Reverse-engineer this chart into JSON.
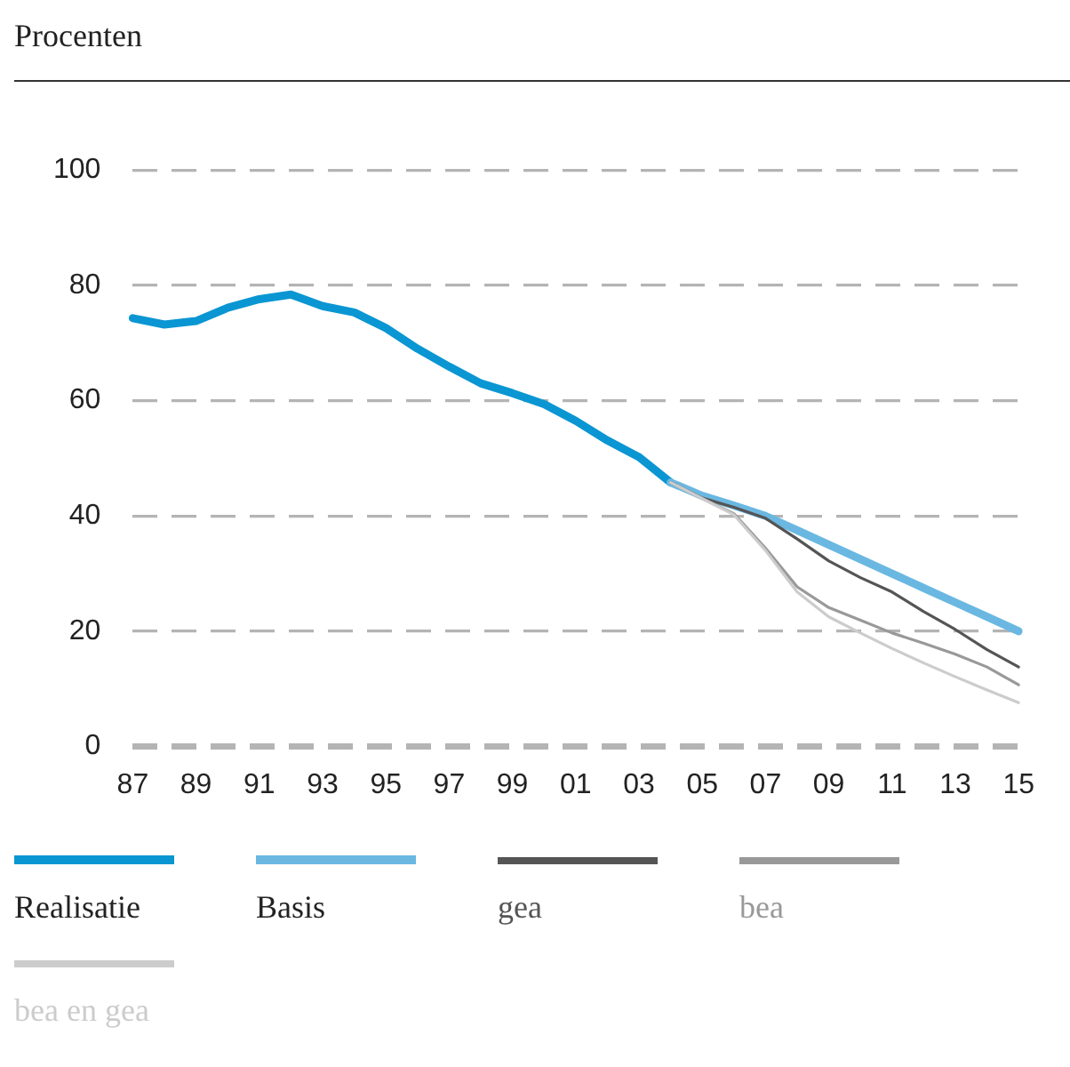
{
  "chart_data": {
    "type": "line",
    "ylabel": "Procenten",
    "categories": [
      "87",
      null,
      "89",
      null,
      "91",
      null,
      "93",
      null,
      "95",
      null,
      "97",
      null,
      "99",
      null,
      "01",
      null,
      "03",
      null,
      "05",
      null,
      "07",
      null,
      "09",
      null,
      "11",
      null,
      "13",
      null,
      "15"
    ],
    "ylim": [
      0,
      100
    ],
    "yticks": [
      0,
      20,
      40,
      60,
      80,
      100
    ],
    "grid": "y",
    "legend": "bottom",
    "marker": "none",
    "line_style": "solid",
    "series": [
      {
        "name": "Realisatie",
        "color": "#0a96d2",
        "values": [
          74.3,
          73.2,
          73.8,
          76.1,
          77.6,
          78.4,
          76.4,
          75.3,
          72.6,
          69,
          65.9,
          63,
          61.3,
          59.4,
          56.5,
          53.1,
          50.2,
          45.8,
          null,
          null,
          null,
          null,
          null,
          null,
          null,
          null,
          null,
          null,
          null
        ]
      },
      {
        "name": "Basis",
        "color": "#6ab8e2",
        "values": [
          null,
          null,
          null,
          null,
          null,
          null,
          null,
          null,
          null,
          null,
          null,
          null,
          null,
          null,
          null,
          null,
          null,
          45.8,
          43.5,
          41.8,
          40,
          37.5,
          35,
          32.5,
          30,
          27.5,
          25,
          22.5,
          20
        ]
      },
      {
        "name": "gea",
        "color": "#555555",
        "values": [
          null,
          null,
          null,
          null,
          null,
          null,
          null,
          null,
          null,
          null,
          null,
          null,
          null,
          null,
          null,
          null,
          null,
          45.8,
          43.1,
          41.5,
          39.6,
          36,
          32.2,
          29.3,
          26.8,
          23.4,
          20.3,
          16.8,
          13.8
        ]
      },
      {
        "name": "bea",
        "color": "#999999",
        "values": [
          null,
          null,
          null,
          null,
          null,
          null,
          null,
          null,
          null,
          null,
          null,
          null,
          null,
          null,
          null,
          null,
          null,
          45.8,
          43,
          40.4,
          34.4,
          27.7,
          24.1,
          21.9,
          19.7,
          17.9,
          16,
          13.8,
          10.7
        ]
      },
      {
        "name": "bea en gea",
        "color": "#cccccc",
        "values": [
          null,
          null,
          null,
          null,
          null,
          null,
          null,
          null,
          null,
          null,
          null,
          null,
          null,
          null,
          null,
          null,
          null,
          45.8,
          43,
          40.2,
          34,
          26.8,
          22.5,
          19.7,
          17,
          14.5,
          12.1,
          9.8,
          7.6
        ]
      }
    ]
  }
}
